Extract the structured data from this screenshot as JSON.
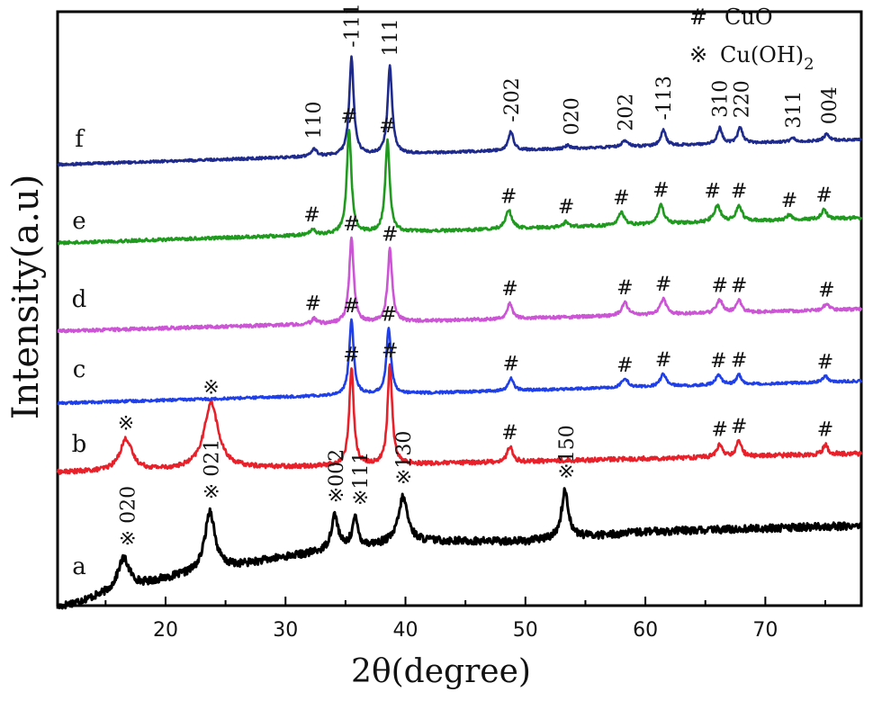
{
  "chart_data": {
    "type": "line",
    "xlabel": "2θ(degree)",
    "ylabel": "Intensity(a.u)",
    "xlim": [
      11,
      78
    ],
    "x_ticks": [
      20,
      30,
      40,
      50,
      60,
      70
    ],
    "y_ticks": "none",
    "grid": false,
    "legend": {
      "placement": "top-right",
      "entries": [
        {
          "symbol": "#",
          "label": "CuO"
        },
        {
          "symbol": "※",
          "label": "Cu(OH)",
          "subscript": "2"
        }
      ]
    },
    "series": [
      {
        "name": "a",
        "color": "#000000",
        "noise": 0.12,
        "baseline": [
          [
            11,
            0.0
          ],
          [
            20,
            0.45
          ],
          [
            30,
            0.8
          ],
          [
            40,
            1.05
          ],
          [
            50,
            1.05
          ],
          [
            60,
            1.2
          ],
          [
            78,
            1.3
          ]
        ],
        "peaks": [
          [
            16.5,
            0.5,
            1.2
          ],
          [
            23.7,
            0.95,
            1.0
          ],
          [
            34.1,
            0.55,
            0.7
          ],
          [
            35.8,
            0.45,
            0.6
          ],
          [
            39.8,
            0.7,
            0.9
          ],
          [
            53.3,
            0.75,
            0.7
          ]
        ],
        "annotations": [
          {
            "x": 16.8,
            "text": "※ 020"
          },
          {
            "x": 23.8,
            "text": "※ 021"
          },
          {
            "x": 34.2,
            "text": "※002"
          },
          {
            "x": 36.2,
            "text": "※111"
          },
          {
            "x": 39.8,
            "text": "※130"
          },
          {
            "x": 53.4,
            "text": "※150"
          }
        ]
      },
      {
        "name": "b",
        "color": "#e8202a",
        "noise": 0.07,
        "baseline": [
          [
            11,
            0.0
          ],
          [
            78,
            0.3
          ]
        ],
        "peaks": [
          [
            16.7,
            0.5,
            1.2
          ],
          [
            23.8,
            1.05,
            1.4
          ],
          [
            35.5,
            1.55,
            0.45
          ],
          [
            38.7,
            1.6,
            0.45
          ],
          [
            48.7,
            0.25,
            0.5
          ],
          [
            66.2,
            0.2,
            0.5
          ],
          [
            67.8,
            0.25,
            0.5
          ],
          [
            75.0,
            0.15,
            0.5
          ]
        ],
        "annotations": [
          {
            "x": 16.7,
            "text": "※"
          },
          {
            "x": 23.8,
            "text": "※"
          },
          {
            "x": 35.5,
            "text": "#"
          },
          {
            "x": 38.7,
            "text": "#"
          },
          {
            "x": 48.7,
            "text": "#"
          },
          {
            "x": 66.2,
            "text": "#"
          },
          {
            "x": 67.8,
            "text": "#"
          },
          {
            "x": 75.0,
            "text": "#"
          }
        ]
      },
      {
        "name": "c",
        "color": "#1f3fe8",
        "noise": 0.04,
        "baseline": [
          [
            11,
            0.0
          ],
          [
            78,
            0.35
          ]
        ],
        "peaks": [
          [
            35.5,
            1.2,
            0.45
          ],
          [
            38.6,
            1.05,
            0.45
          ],
          [
            48.8,
            0.2,
            0.5
          ],
          [
            58.3,
            0.15,
            0.6
          ],
          [
            61.5,
            0.2,
            0.6
          ],
          [
            66.1,
            0.15,
            0.6
          ],
          [
            67.8,
            0.15,
            0.5
          ],
          [
            75.0,
            0.1,
            0.5
          ]
        ],
        "annotations": [
          {
            "x": 35.5,
            "text": "#"
          },
          {
            "x": 38.6,
            "text": "#"
          },
          {
            "x": 48.8,
            "text": "#"
          },
          {
            "x": 58.3,
            "text": "#"
          },
          {
            "x": 61.5,
            "text": "#"
          },
          {
            "x": 66.1,
            "text": "#"
          },
          {
            "x": 67.8,
            "text": "#"
          },
          {
            "x": 75.0,
            "text": "#"
          }
        ]
      },
      {
        "name": "d",
        "color": "#cc55d6",
        "noise": 0.05,
        "baseline": [
          [
            11,
            0.0
          ],
          [
            78,
            0.35
          ]
        ],
        "peaks": [
          [
            32.4,
            0.08,
            0.5
          ],
          [
            35.5,
            1.35,
            0.45
          ],
          [
            38.7,
            1.15,
            0.45
          ],
          [
            48.7,
            0.25,
            0.5
          ],
          [
            58.3,
            0.2,
            0.6
          ],
          [
            61.5,
            0.25,
            0.6
          ],
          [
            66.2,
            0.2,
            0.6
          ],
          [
            67.8,
            0.2,
            0.5
          ],
          [
            75.1,
            0.1,
            0.5
          ]
        ],
        "annotations": [
          {
            "x": 32.3,
            "text": "#"
          },
          {
            "x": 35.5,
            "text": "#"
          },
          {
            "x": 38.7,
            "text": "#"
          },
          {
            "x": 48.7,
            "text": "#"
          },
          {
            "x": 58.3,
            "text": "#"
          },
          {
            "x": 61.5,
            "text": "#"
          },
          {
            "x": 66.2,
            "text": "#"
          },
          {
            "x": 67.8,
            "text": "#"
          },
          {
            "x": 75.1,
            "text": "#"
          }
        ]
      },
      {
        "name": "e",
        "color": "#1f9a1f",
        "noise": 0.05,
        "baseline": [
          [
            11,
            0.0
          ],
          [
            78,
            0.4
          ]
        ],
        "peaks": [
          [
            32.3,
            0.08,
            0.5
          ],
          [
            35.3,
            1.65,
            0.45
          ],
          [
            38.5,
            1.45,
            0.45
          ],
          [
            48.6,
            0.3,
            0.6
          ],
          [
            53.4,
            0.08,
            0.5
          ],
          [
            58.0,
            0.2,
            0.6
          ],
          [
            61.3,
            0.3,
            0.6
          ],
          [
            66.0,
            0.25,
            0.7
          ],
          [
            67.8,
            0.25,
            0.6
          ],
          [
            72.0,
            0.08,
            0.5
          ],
          [
            74.9,
            0.15,
            0.5
          ]
        ],
        "annotations": [
          {
            "x": 32.2,
            "text": "#"
          },
          {
            "x": 35.3,
            "text": "#"
          },
          {
            "x": 38.5,
            "text": "#"
          },
          {
            "x": 48.6,
            "text": "#"
          },
          {
            "x": 53.4,
            "text": "#"
          },
          {
            "x": 58.0,
            "text": "#"
          },
          {
            "x": 61.3,
            "text": "#"
          },
          {
            "x": 65.6,
            "text": "#"
          },
          {
            "x": 67.8,
            "text": "#"
          },
          {
            "x": 72.0,
            "text": "#"
          },
          {
            "x": 74.9,
            "text": "#"
          }
        ]
      },
      {
        "name": "f",
        "color": "#1e2a8c",
        "noise": 0.04,
        "baseline": [
          [
            11,
            0.0
          ],
          [
            78,
            0.4
          ]
        ],
        "peaks": [
          [
            32.4,
            0.12,
            0.5
          ],
          [
            35.5,
            1.55,
            0.45
          ],
          [
            38.7,
            1.4,
            0.45
          ],
          [
            48.8,
            0.3,
            0.5
          ],
          [
            53.5,
            0.05,
            0.5
          ],
          [
            58.3,
            0.1,
            0.6
          ],
          [
            61.5,
            0.25,
            0.5
          ],
          [
            66.2,
            0.25,
            0.5
          ],
          [
            67.9,
            0.25,
            0.5
          ],
          [
            72.3,
            0.05,
            0.5
          ],
          [
            75.1,
            0.1,
            0.5
          ]
        ],
        "annotations": [
          {
            "x": 32.3,
            "text": "110"
          },
          {
            "x": 35.5,
            "text": "-111"
          },
          {
            "x": 38.7,
            "text": "111"
          },
          {
            "x": 48.8,
            "text": "-202"
          },
          {
            "x": 53.8,
            "text": "020"
          },
          {
            "x": 58.3,
            "text": "202"
          },
          {
            "x": 61.5,
            "text": "-113"
          },
          {
            "x": 66.2,
            "text": "310"
          },
          {
            "x": 68.0,
            "text": "220"
          },
          {
            "x": 72.3,
            "text": "311"
          },
          {
            "x": 75.3,
            "text": "004"
          }
        ]
      }
    ]
  }
}
